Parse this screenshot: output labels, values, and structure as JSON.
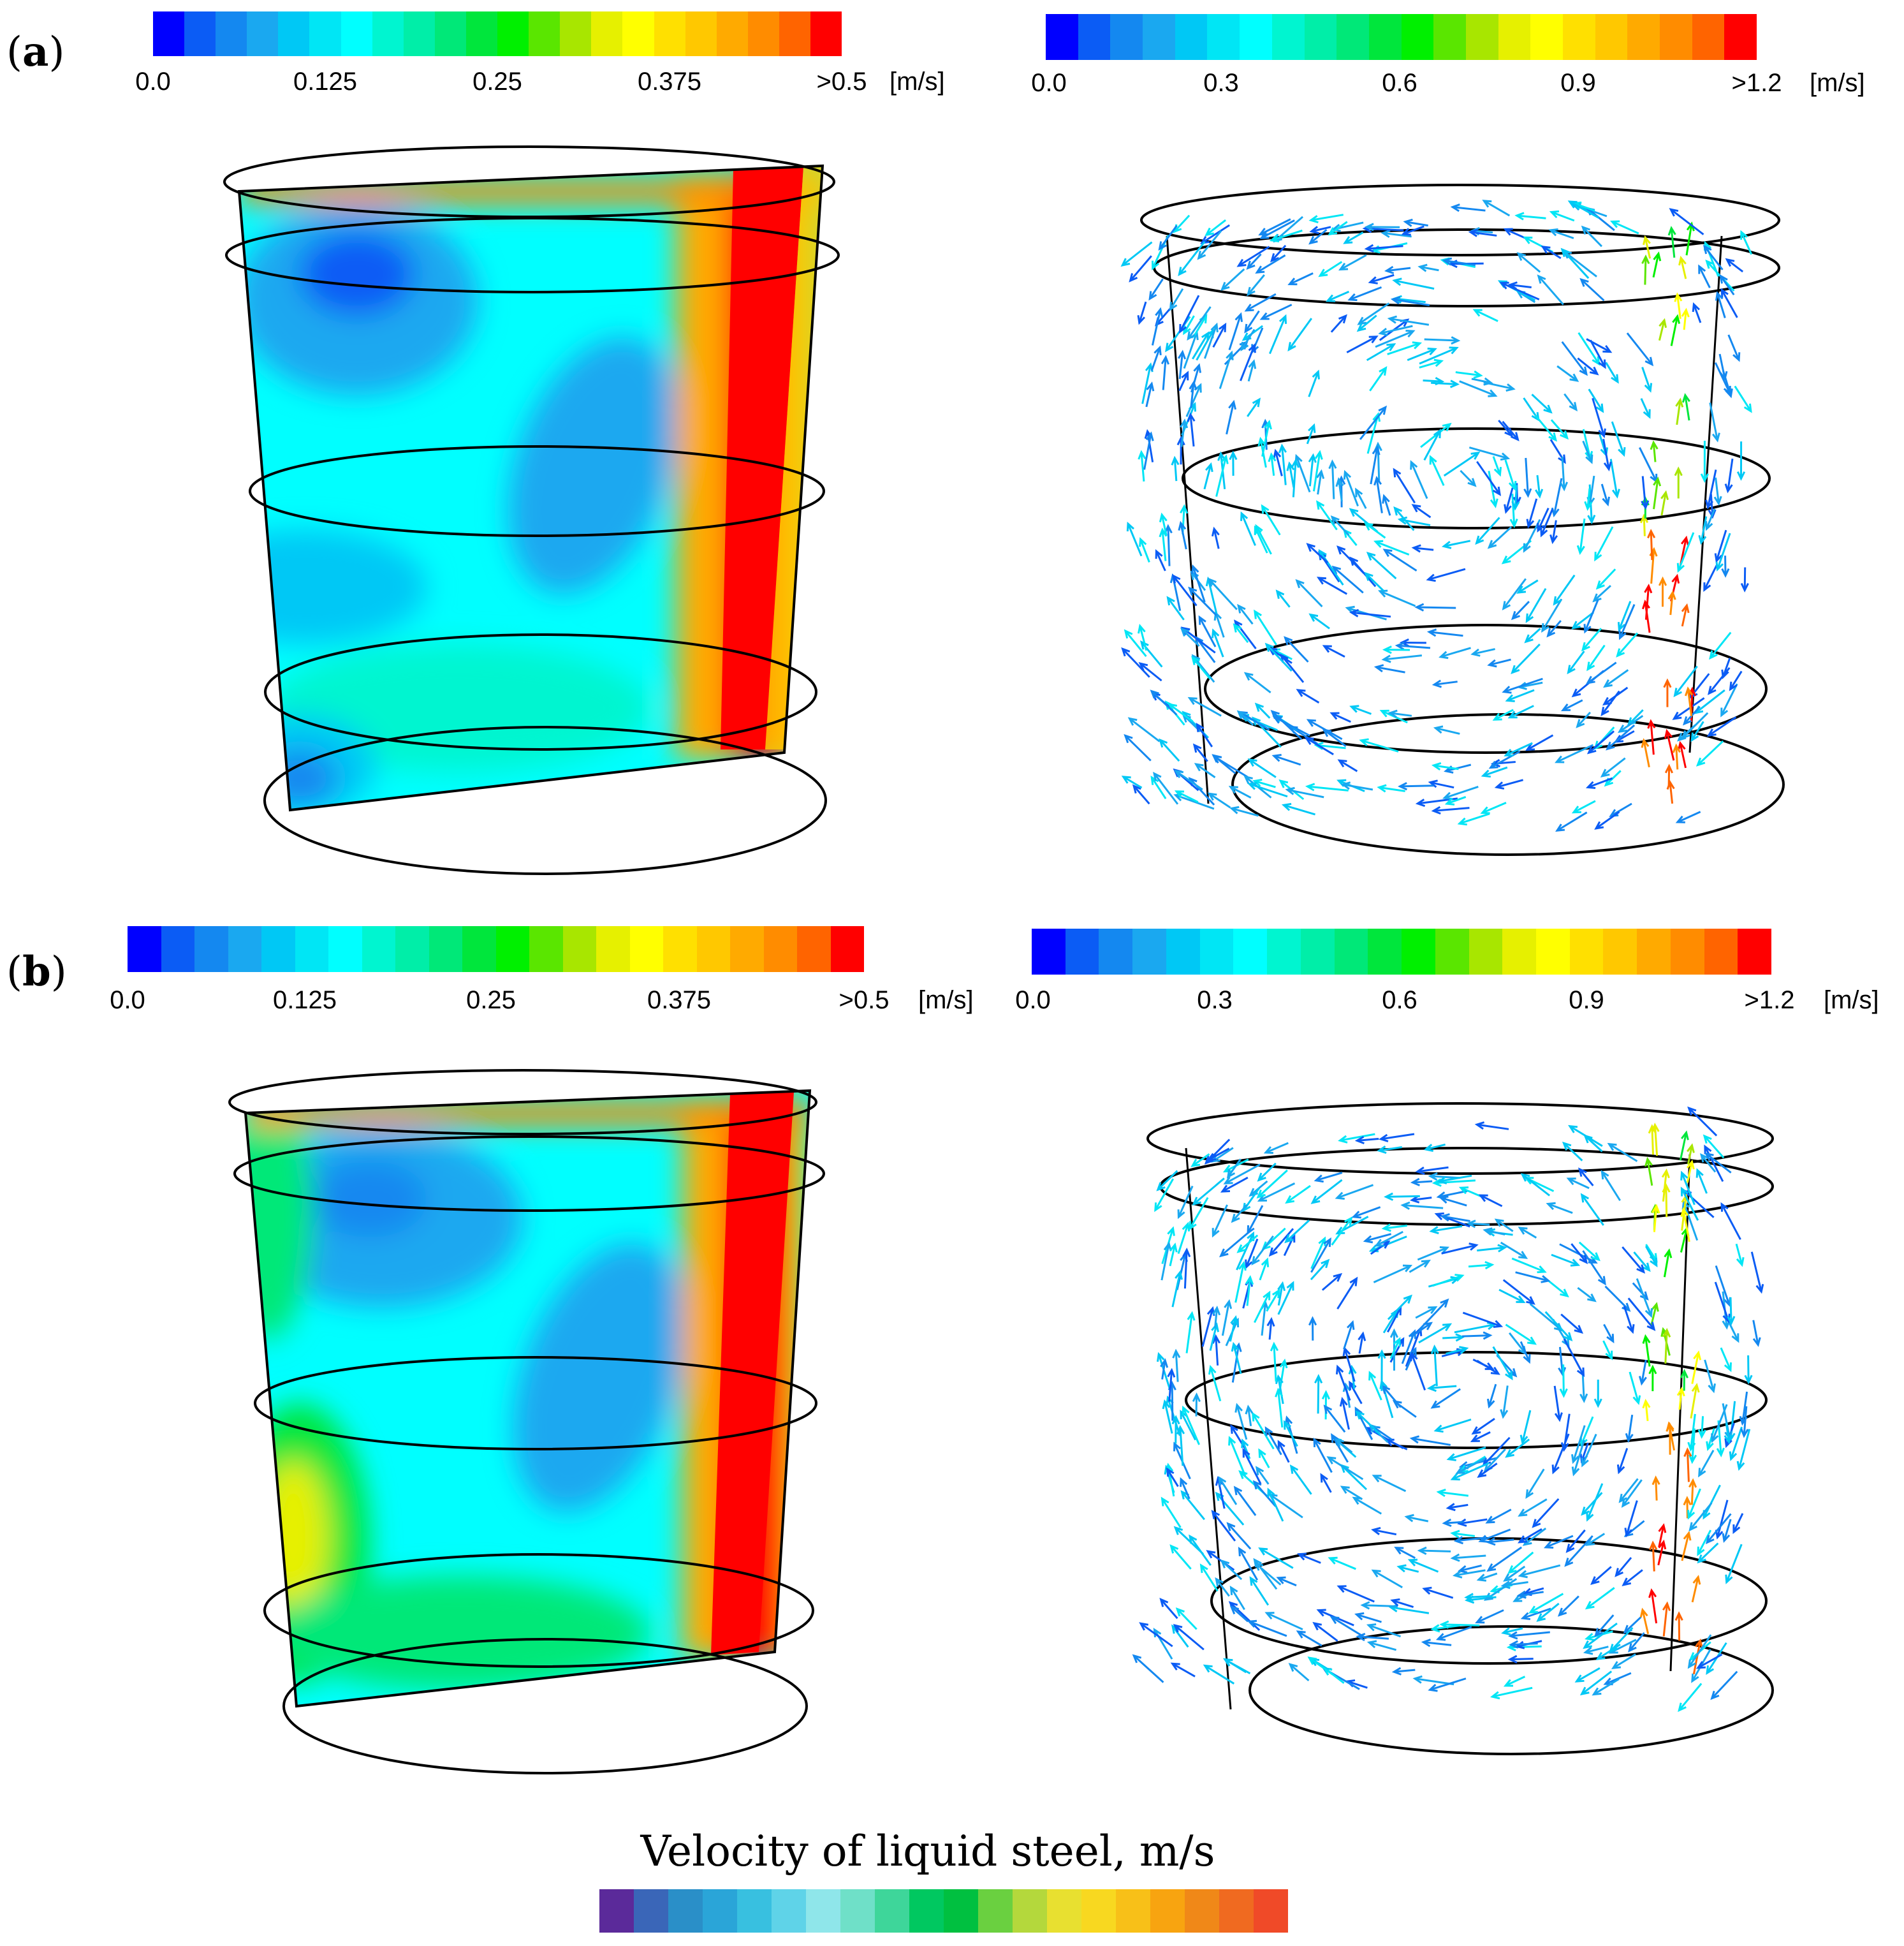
{
  "panels": [
    {
      "label_open": "(",
      "label_letter": "a",
      "label_close": ")",
      "contour_legend": {
        "ticks": [
          "0.0",
          "0.125",
          "0.25",
          "0.375",
          ">0.5"
        ],
        "unit": "[m/s]"
      },
      "vector_legend": {
        "ticks": [
          "0.0",
          "0.3",
          "0.6",
          "0.9",
          ">1.2"
        ],
        "unit": "[m/s]"
      }
    },
    {
      "label_open": "(",
      "label_letter": "b",
      "label_close": ")",
      "contour_legend": {
        "ticks": [
          "0.0",
          "0.125",
          "0.25",
          "0.375",
          ">0.5"
        ],
        "unit": "[m/s]"
      },
      "vector_legend": {
        "ticks": [
          "0.0",
          "0.3",
          "0.6",
          "0.9",
          ">1.2"
        ],
        "unit": "[m/s]"
      }
    }
  ],
  "bottom_legend": {
    "title": "Velocity of liquid steel, m/s"
  },
  "colors": {
    "cfd_scale": [
      "#0000ff",
      "#0b5cf5",
      "#1488f0",
      "#1aa8f0",
      "#00c8f5",
      "#00e6f5",
      "#00ffff",
      "#00f5d0",
      "#00eea8",
      "#00e878",
      "#00e63c",
      "#00f000",
      "#5ae600",
      "#a8e600",
      "#e6f000",
      "#ffff00",
      "#ffe000",
      "#ffc800",
      "#ffaa00",
      "#ff8c00",
      "#ff6400",
      "#ff0000"
    ],
    "bottom_scale": [
      "#5b2a9a",
      "#3a66b8",
      "#2a8fc8",
      "#2aa5d8",
      "#38c0e0",
      "#5fd3e8",
      "#8fe6ea",
      "#6fe0c8",
      "#3ed69a",
      "#00c860",
      "#00c040",
      "#6ad040",
      "#b4d83c",
      "#e8e030",
      "#f8d820",
      "#f8c018",
      "#f8a410",
      "#f08818",
      "#f06a20",
      "#f04a28"
    ],
    "outline": "#000000"
  }
}
